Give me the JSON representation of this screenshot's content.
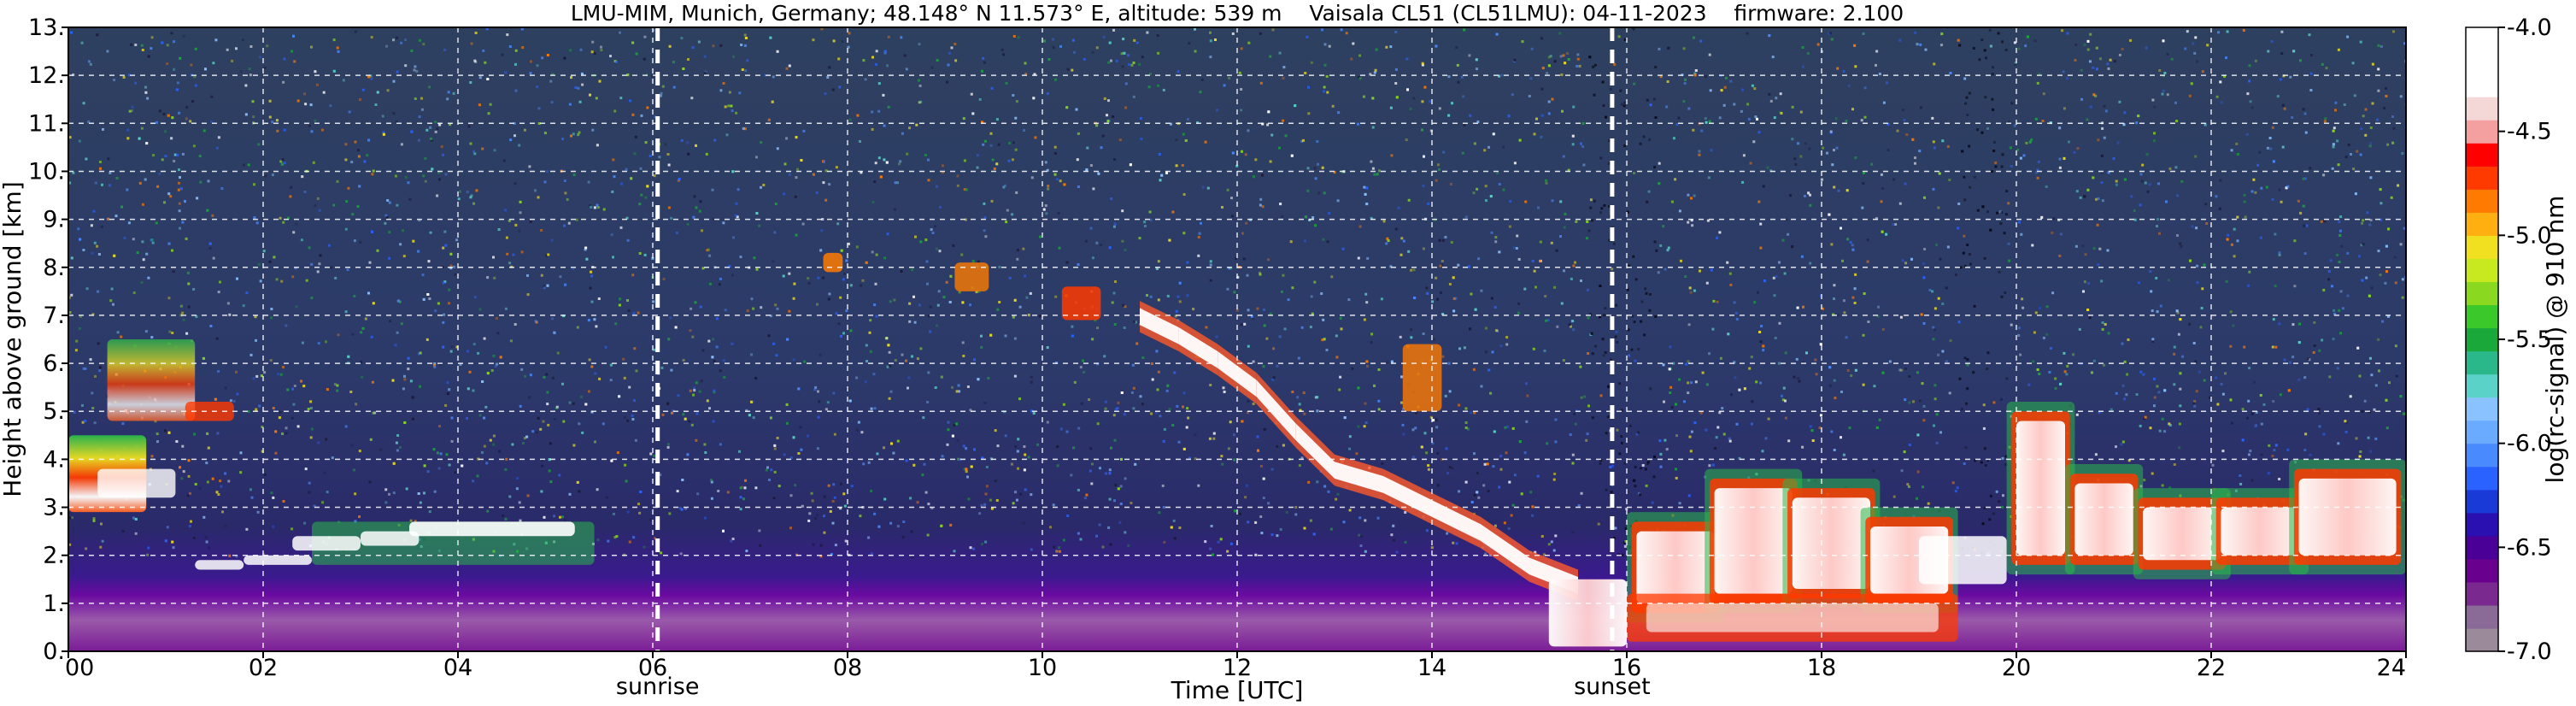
{
  "chart_data": {
    "type": "heatmap",
    "title": "LMU-MIM, Munich, Germany; 48.148° N 11.573° E, altitude: 539 m    Vaisala CL51 (CL51LMU): 04-11-2023    firmware: 2.100",
    "xlabel": "Time [UTC]",
    "ylabel": "Height above ground [km]",
    "xlim": [
      0,
      24
    ],
    "ylim": [
      0,
      13
    ],
    "x_ticks": [
      0,
      2,
      4,
      6,
      8,
      10,
      12,
      14,
      16,
      18,
      20,
      22,
      24
    ],
    "x_tick_labels": [
      "00",
      "02",
      "04",
      "06",
      "08",
      "10",
      "12",
      "14",
      "16",
      "18",
      "20",
      "22",
      "24"
    ],
    "y_ticks": [
      0,
      1,
      2,
      3,
      4,
      5,
      6,
      7,
      8,
      9,
      10,
      11,
      12,
      13
    ],
    "y_tick_labels": [
      "0.",
      "1.",
      "2.",
      "3.",
      "4.",
      "5.",
      "6.",
      "7.",
      "8.",
      "9.",
      "10.",
      "11.",
      "12.",
      "13."
    ],
    "grid": true,
    "events": [
      {
        "name": "sunrise",
        "time": 6.05
      },
      {
        "name": "sunset",
        "time": 15.85
      }
    ],
    "colorbar": {
      "label": "log(rc-signal) @ 910 nm",
      "range": [
        -7.0,
        -4.0
      ],
      "ticks": [
        -7.0,
        -6.5,
        -6.0,
        -5.5,
        -5.0,
        -4.5,
        -4.0
      ],
      "tick_labels": [
        "-7.0",
        "-6.5",
        "-6.0",
        "-5.5",
        "-5.0",
        "-4.5",
        "-4.0"
      ],
      "colors": [
        "#9a8a9a",
        "#8a6a96",
        "#7a2a8e",
        "#6a008e",
        "#4a0096",
        "#2a10b0",
        "#1a3ad8",
        "#2a62ff",
        "#4a8aff",
        "#6aaaff",
        "#8ac2ff",
        "#5ad2c8",
        "#2ab88a",
        "#1aa83a",
        "#3ac82a",
        "#8ad820",
        "#c8e820",
        "#f0e020",
        "#ffb010",
        "#ff7a00",
        "#ff3a00",
        "#ff0000",
        "#f4a0a0",
        "#f4d8d8",
        "#ffffff",
        "#ffffff",
        "#ffffff"
      ]
    },
    "layers": [
      {
        "name": "noise_upper",
        "y_range": [
          2.5,
          13
        ],
        "value": -6.2
      },
      {
        "name": "boundary_layer",
        "y_range": [
          0,
          1.5
        ],
        "value": -6.8
      },
      {
        "name": "early_cloud_1",
        "x_range": [
          0,
          0.9
        ],
        "y_range": [
          2.9,
          4.6
        ],
        "value": -4.6
      },
      {
        "name": "early_cloud_2",
        "x_range": [
          0.4,
          1.8
        ],
        "y_range": [
          4.7,
          6.6
        ],
        "value": -5.3
      },
      {
        "name": "night_layer",
        "x_range": [
          1.2,
          5.5
        ],
        "y_range": [
          1.7,
          2.8
        ],
        "value": -5.8
      },
      {
        "name": "cirrus_descending",
        "x_range": [
          9.8,
          15.5
        ],
        "y_range": [
          0.6,
          7.6
        ],
        "value": -4.3
      },
      {
        "name": "evening_clouds",
        "x_range": [
          15.5,
          24
        ],
        "y_range": [
          0.6,
          5.6
        ],
        "value": -4.4
      }
    ]
  }
}
